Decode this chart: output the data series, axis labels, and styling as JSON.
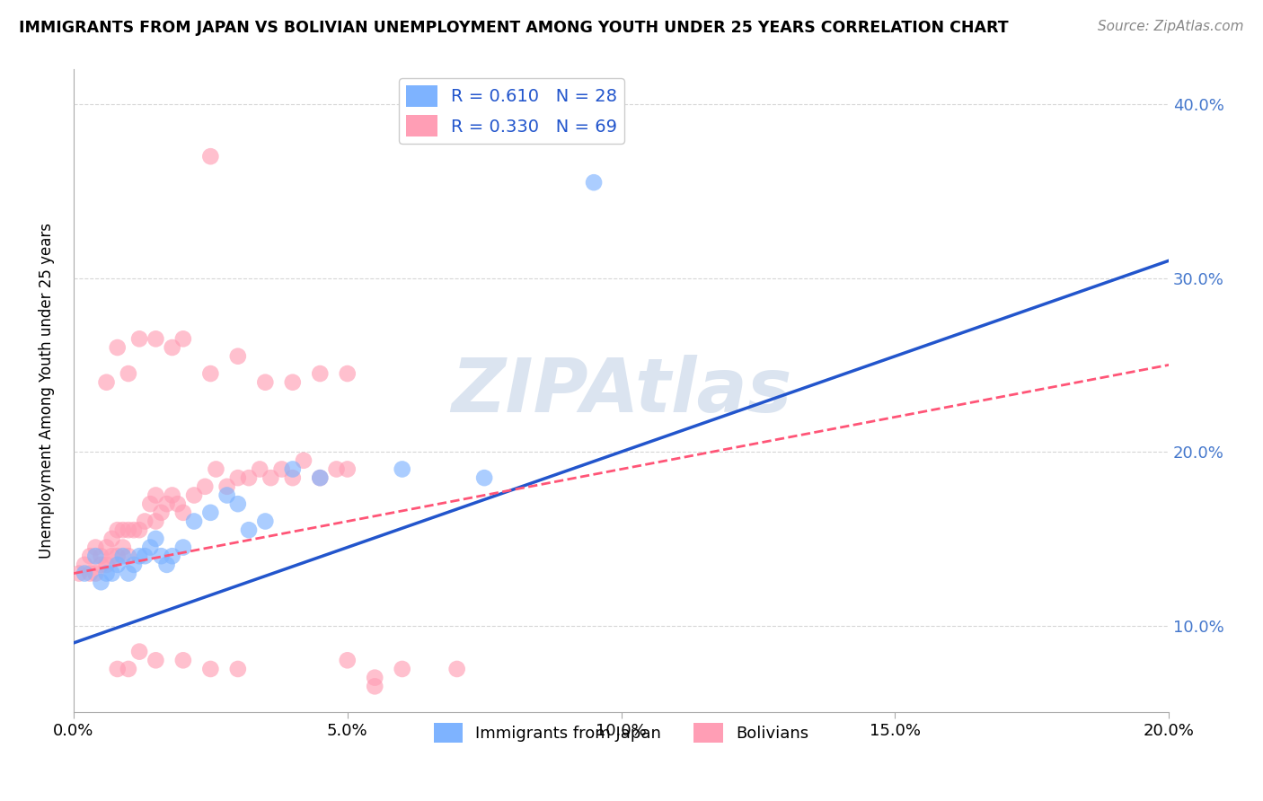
{
  "title": "IMMIGRANTS FROM JAPAN VS BOLIVIAN UNEMPLOYMENT AMONG YOUTH UNDER 25 YEARS CORRELATION CHART",
  "source": "Source: ZipAtlas.com",
  "ylabel": "Unemployment Among Youth under 25 years",
  "xlabel_blue": "Immigrants from Japan",
  "xlabel_pink": "Bolivians",
  "legend_blue_r": "R = 0.610",
  "legend_blue_n": "N = 28",
  "legend_pink_r": "R = 0.330",
  "legend_pink_n": "N = 69",
  "xlim": [
    0.0,
    0.2
  ],
  "ylim": [
    0.05,
    0.42
  ],
  "yticks": [
    0.1,
    0.2,
    0.3,
    0.4
  ],
  "ytick_labels": [
    "10.0%",
    "20.0%",
    "30.0%",
    "40.0%"
  ],
  "xticks": [
    0.0,
    0.05,
    0.1,
    0.15,
    0.2
  ],
  "xtick_labels": [
    "0.0%",
    "5.0%",
    "10.0%",
    "15.0%",
    "20.0%"
  ],
  "blue_color": "#7EB3FF",
  "pink_color": "#FF9EB5",
  "trend_blue_color": "#2255CC",
  "trend_pink_color": "#FF5577",
  "watermark": "ZIPAtlas",
  "watermark_color": "#B0C4DE",
  "blue_line_x0": 0.0,
  "blue_line_y0": 0.09,
  "blue_line_x1": 0.2,
  "blue_line_y1": 0.31,
  "pink_line_x0": 0.0,
  "pink_line_y0": 0.13,
  "pink_line_x1": 0.2,
  "pink_line_y1": 0.25,
  "blue_points_x": [
    0.002,
    0.004,
    0.005,
    0.006,
    0.007,
    0.008,
    0.009,
    0.01,
    0.011,
    0.012,
    0.013,
    0.014,
    0.015,
    0.016,
    0.017,
    0.018,
    0.02,
    0.022,
    0.025,
    0.028,
    0.03,
    0.032,
    0.035,
    0.04,
    0.045,
    0.06,
    0.075,
    0.095
  ],
  "blue_points_y": [
    0.13,
    0.14,
    0.125,
    0.13,
    0.13,
    0.135,
    0.14,
    0.13,
    0.135,
    0.14,
    0.14,
    0.145,
    0.15,
    0.14,
    0.135,
    0.14,
    0.145,
    0.16,
    0.165,
    0.175,
    0.17,
    0.155,
    0.16,
    0.19,
    0.185,
    0.19,
    0.185,
    0.355
  ],
  "pink_points_x": [
    0.001,
    0.002,
    0.003,
    0.003,
    0.004,
    0.004,
    0.005,
    0.005,
    0.006,
    0.006,
    0.007,
    0.007,
    0.008,
    0.008,
    0.009,
    0.009,
    0.01,
    0.01,
    0.011,
    0.012,
    0.013,
    0.014,
    0.015,
    0.015,
    0.016,
    0.017,
    0.018,
    0.019,
    0.02,
    0.022,
    0.024,
    0.026,
    0.028,
    0.03,
    0.032,
    0.034,
    0.036,
    0.038,
    0.04,
    0.042,
    0.045,
    0.048,
    0.05,
    0.006,
    0.008,
    0.01,
    0.012,
    0.015,
    0.018,
    0.02,
    0.025,
    0.03,
    0.035,
    0.04,
    0.045,
    0.05,
    0.008,
    0.01,
    0.012,
    0.015,
    0.02,
    0.025,
    0.03,
    0.05,
    0.06,
    0.07,
    0.025,
    0.055,
    0.055
  ],
  "pink_points_y": [
    0.13,
    0.135,
    0.13,
    0.14,
    0.13,
    0.145,
    0.135,
    0.14,
    0.135,
    0.145,
    0.14,
    0.15,
    0.14,
    0.155,
    0.145,
    0.155,
    0.14,
    0.155,
    0.155,
    0.155,
    0.16,
    0.17,
    0.16,
    0.175,
    0.165,
    0.17,
    0.175,
    0.17,
    0.165,
    0.175,
    0.18,
    0.19,
    0.18,
    0.185,
    0.185,
    0.19,
    0.185,
    0.19,
    0.185,
    0.195,
    0.185,
    0.19,
    0.19,
    0.24,
    0.26,
    0.245,
    0.265,
    0.265,
    0.26,
    0.265,
    0.245,
    0.255,
    0.24,
    0.24,
    0.245,
    0.245,
    0.075,
    0.075,
    0.085,
    0.08,
    0.08,
    0.075,
    0.075,
    0.08,
    0.075,
    0.075,
    0.37,
    0.07,
    0.065
  ]
}
